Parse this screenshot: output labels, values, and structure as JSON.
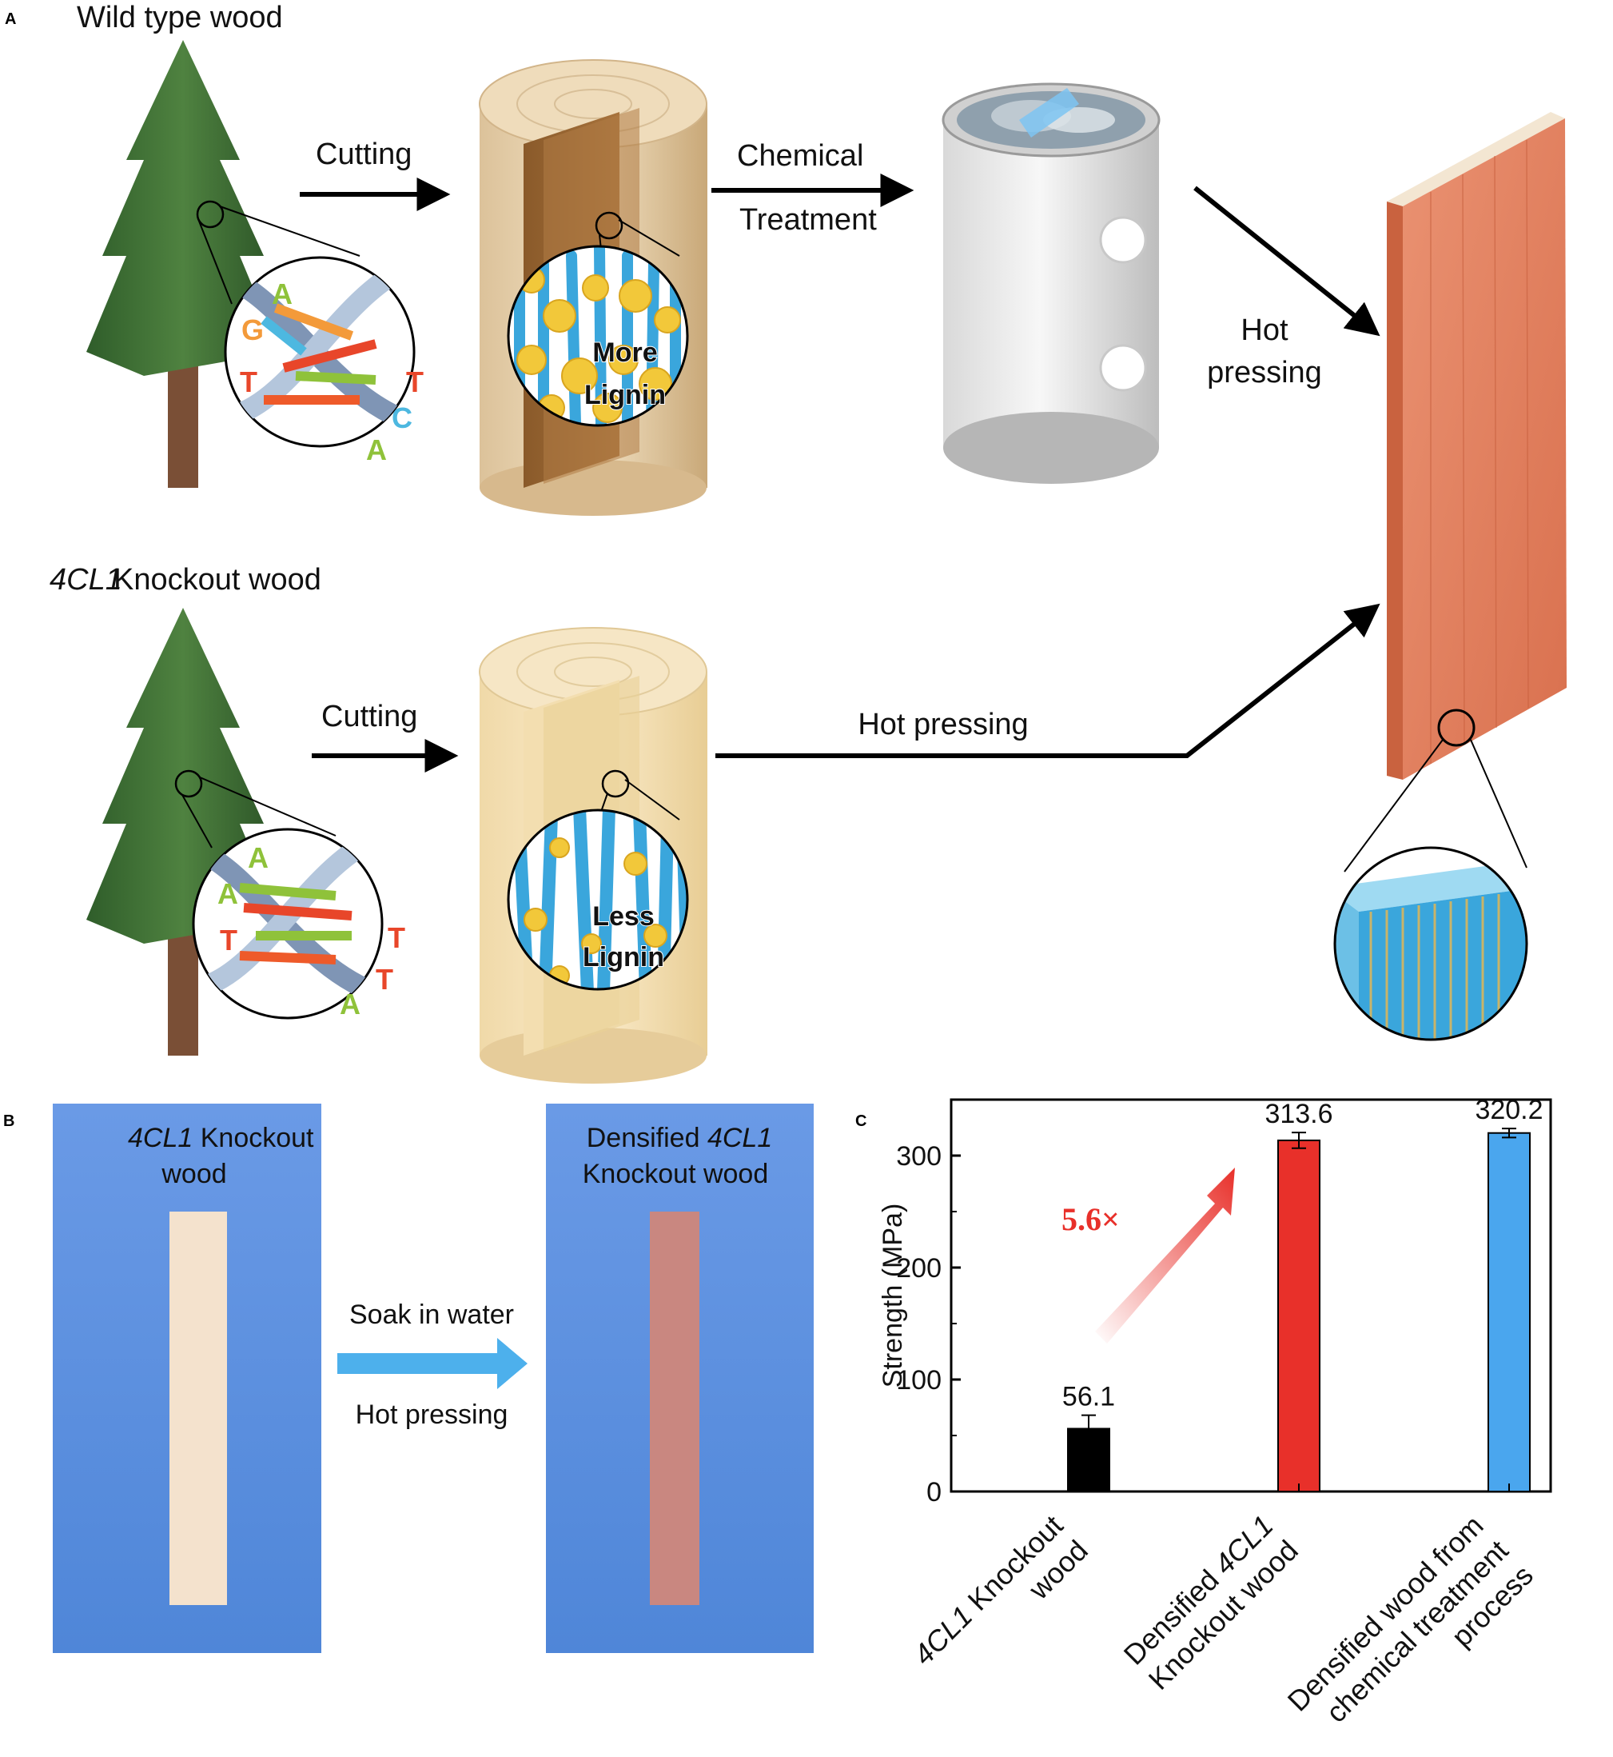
{
  "panel_a": {
    "letter": "A",
    "top_title": "Wild type wood",
    "bottom_title_italic": "4CL1",
    "bottom_title_rest": " Knockout wood",
    "top_cutting": "Cutting",
    "chem_line1": "Chemical",
    "chem_line2": "Treatment",
    "hot_line1": "Hot",
    "hot_line2": "pressing",
    "bottom_cutting": "Cutting",
    "bottom_hot_pressing": "Hot pressing",
    "more_line1": "More",
    "more_line2": "Lignin",
    "less_line1": "Less",
    "less_line2": "Lignin",
    "top_dna_letters": [
      "A",
      "G",
      "T",
      "T",
      "C",
      "A"
    ],
    "bottom_dna_letters": [
      "A",
      "A",
      "T",
      "T",
      "T",
      "A"
    ]
  },
  "panel_b": {
    "letter": "B",
    "left_italic": "4CL1",
    "left_rest": " Knockout",
    "left_line2": "wood",
    "right_line1_plain": "Densified ",
    "right_line1_italic": "4CL1",
    "right_line2": "Knockout wood",
    "arrow_top": "Soak in water",
    "arrow_bottom": "Hot pressing"
  },
  "panel_c": {
    "letter": "C",
    "annotation": "5.6×"
  },
  "colors": {
    "bar_black": "#000000",
    "bar_red": "#e8302a",
    "bar_blue": "#4aa6ee",
    "photo_bg": "#5b8fe0",
    "arrow_blue": "#4db0ec",
    "annotation_red": "#e8302a",
    "board": "#e0805f",
    "fiber": "#3aa6dc",
    "lignin": "#f2c83a"
  },
  "chart_data": {
    "type": "bar",
    "ylabel": "Strength (MPa)",
    "ylim": [
      0,
      350
    ],
    "yticks": [
      0,
      100,
      200,
      300
    ],
    "grid": false,
    "categories": [
      {
        "italic": "4CL1",
        "rest": " Knockout",
        "line2": "wood"
      },
      {
        "line1": "Densified ",
        "italic": "4CL1",
        "line2": "Knockout wood"
      },
      {
        "line1": "Densified  wood from",
        "line2": "chemical treatment",
        "line3": "process"
      }
    ],
    "values": [
      56.1,
      313.6,
      320.2
    ],
    "errors": [
      12,
      7,
      4
    ],
    "value_labels": [
      "56.1",
      "313.6",
      "320.2"
    ]
  }
}
